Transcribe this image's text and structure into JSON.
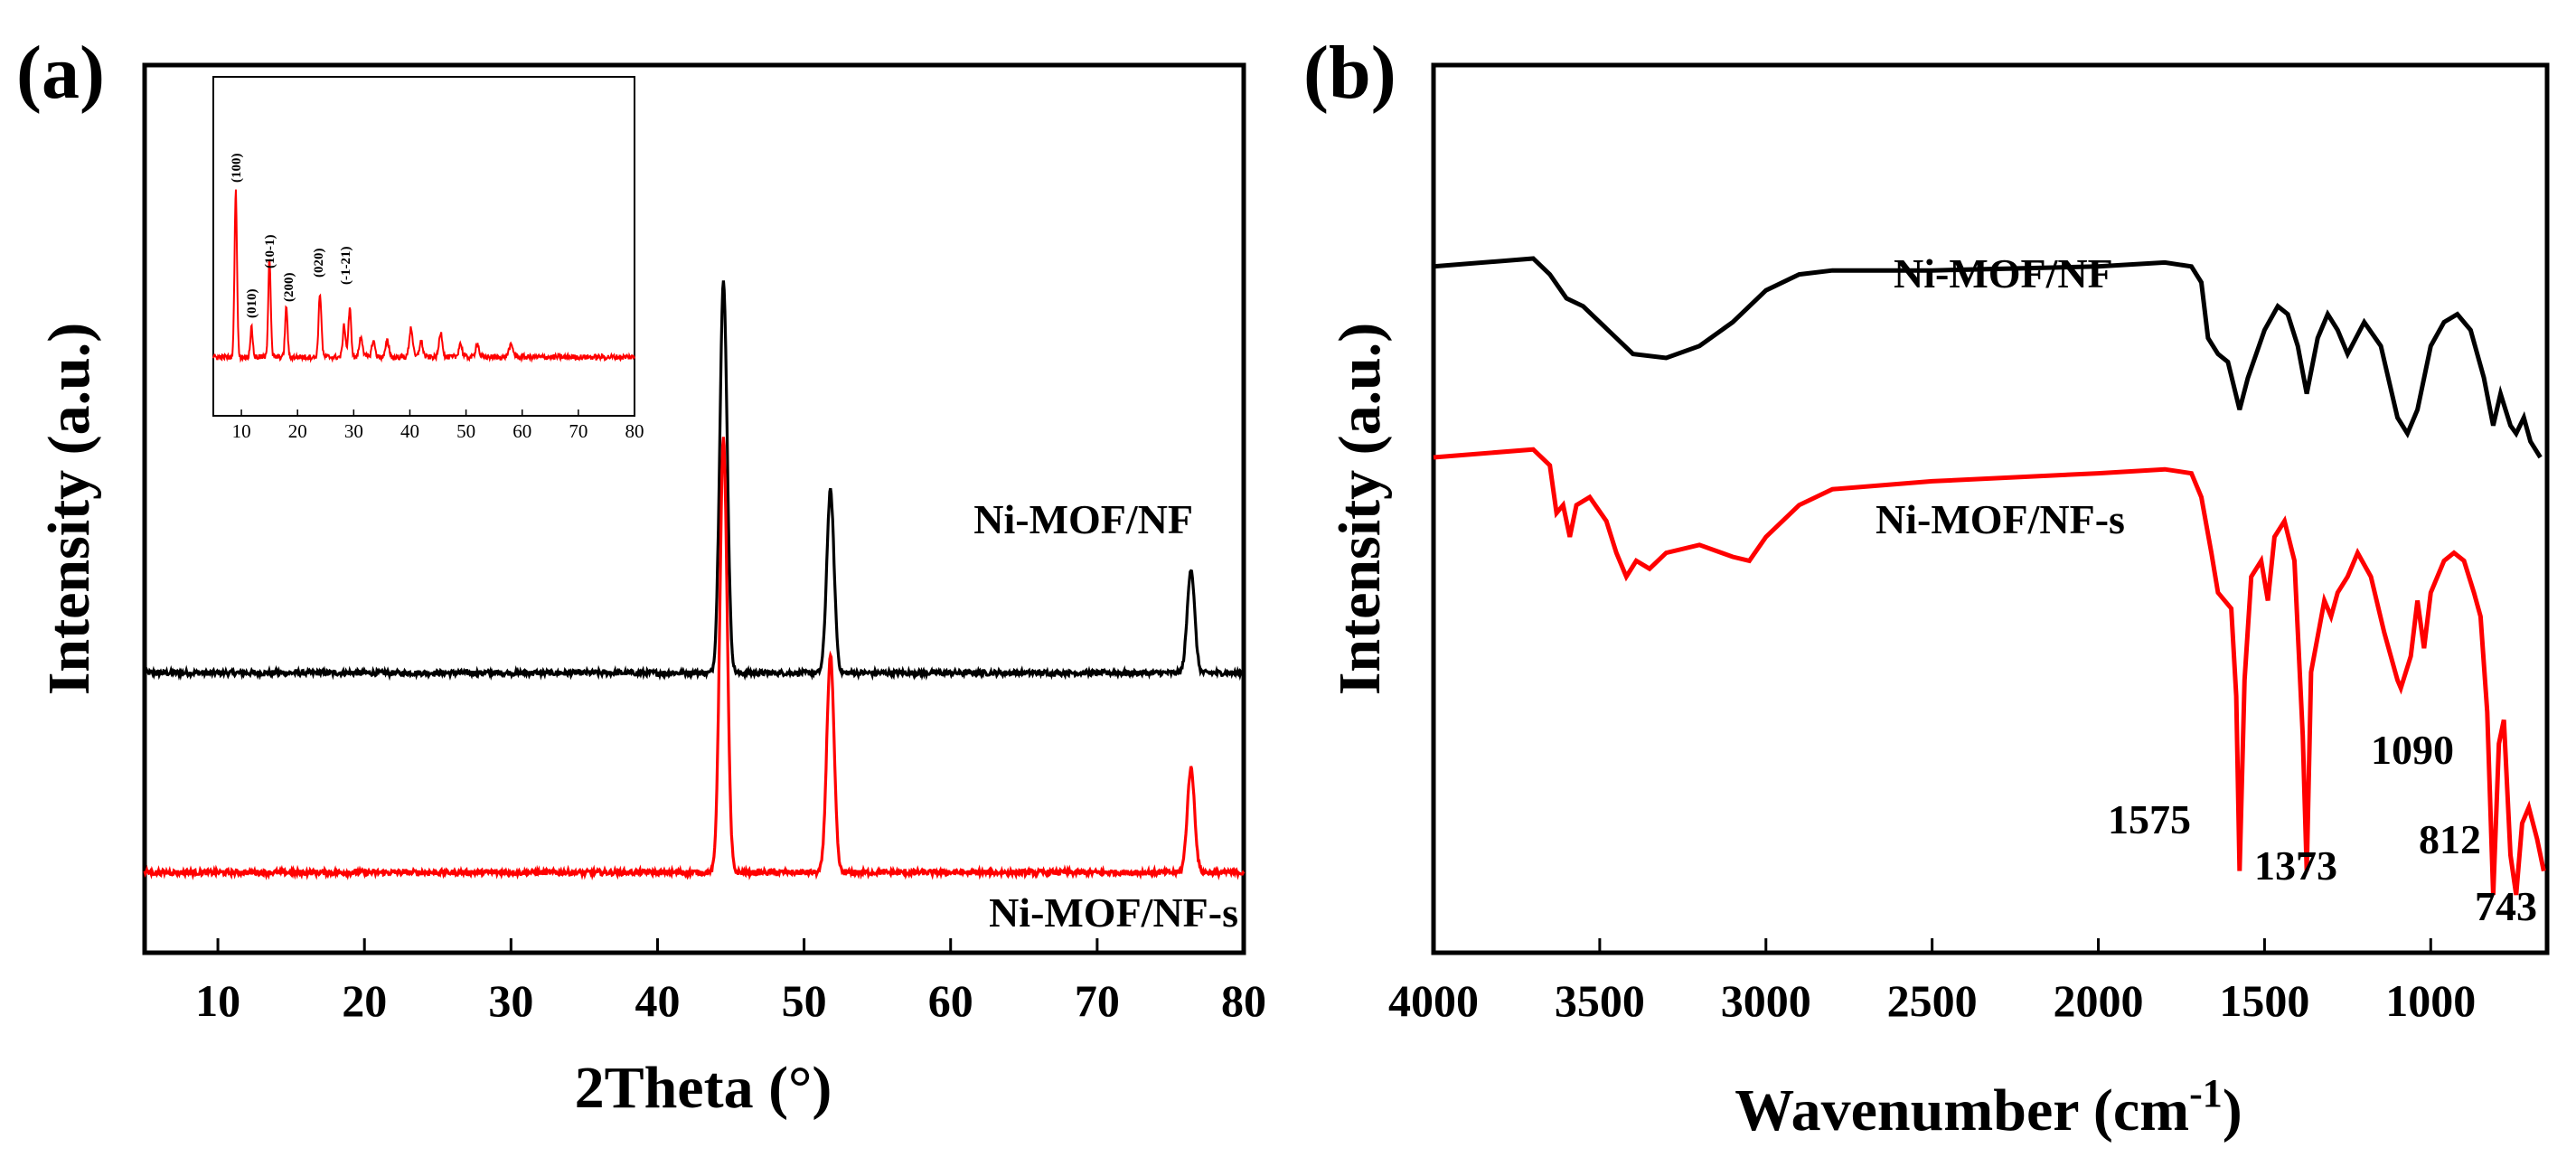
{
  "chart_data": [
    {
      "panel": "(a)",
      "type": "line",
      "title": "",
      "xlabel": "2Theta (°)",
      "ylabel": "Intensity (a.u.)",
      "xlim": [
        5,
        80
      ],
      "xticks": [
        "10",
        "20",
        "30",
        "40",
        "50",
        "60",
        "70",
        "80"
      ],
      "yticks_shown": false,
      "series": [
        {
          "name": "Ni-MOF/NF",
          "color": "#000000",
          "baseline": 0.52,
          "noise": 0.006,
          "peaks": [
            {
              "x": 44.5,
              "height": 0.9,
              "width": 0.25
            },
            {
              "x": 51.8,
              "height": 0.42,
              "width": 0.25
            },
            {
              "x": 76.4,
              "height": 0.24,
              "width": 0.25
            }
          ]
        },
        {
          "name": "Ni-MOF/NF-s",
          "color": "#ff0000",
          "baseline": 0.06,
          "noise": 0.006,
          "peaks": [
            {
              "x": 44.5,
              "height": 1.0,
              "width": 0.25
            },
            {
              "x": 51.8,
              "height": 0.5,
              "width": 0.25
            },
            {
              "x": 76.4,
              "height": 0.24,
              "width": 0.25
            }
          ]
        }
      ],
      "inset": {
        "type": "line",
        "xlim": [
          5,
          80
        ],
        "xticks": [
          "10",
          "20",
          "30",
          "40",
          "50",
          "60",
          "70",
          "80"
        ],
        "series": {
          "color": "#ff0000",
          "baseline": 0.06,
          "noise": 0.012,
          "peaks": [
            {
              "x": 9.0,
              "height": 0.74,
              "width": 0.22
            },
            {
              "x": 11.8,
              "height": 0.13,
              "width": 0.22
            },
            {
              "x": 15.0,
              "height": 0.44,
              "width": 0.22
            },
            {
              "x": 18.0,
              "height": 0.22,
              "width": 0.22
            },
            {
              "x": 24.0,
              "height": 0.28,
              "width": 0.25
            },
            {
              "x": 28.3,
              "height": 0.14,
              "width": 0.25
            },
            {
              "x": 29.3,
              "height": 0.21,
              "width": 0.25
            },
            {
              "x": 31.3,
              "height": 0.09,
              "width": 0.3
            },
            {
              "x": 33.5,
              "height": 0.07,
              "width": 0.3
            },
            {
              "x": 36.0,
              "height": 0.07,
              "width": 0.3
            },
            {
              "x": 40.2,
              "height": 0.13,
              "width": 0.3
            },
            {
              "x": 42.0,
              "height": 0.07,
              "width": 0.3
            },
            {
              "x": 45.5,
              "height": 0.11,
              "width": 0.3
            },
            {
              "x": 49.0,
              "height": 0.06,
              "width": 0.3
            },
            {
              "x": 52.0,
              "height": 0.06,
              "width": 0.3
            },
            {
              "x": 58.0,
              "height": 0.05,
              "width": 0.4
            }
          ]
        },
        "annotations": [
          "(100)",
          "(010)",
          "(10-1)",
          "(200)",
          "(020)",
          "(-1-21)"
        ]
      }
    },
    {
      "panel": "(b)",
      "type": "line",
      "title": "",
      "xlabel": "Wavenumber (cm",
      "xlabel_superscript": "-1",
      "xlabel_suffix": ")",
      "ylabel": "Intensity (a.u.)",
      "xlim": [
        4000,
        650
      ],
      "xticks": [
        "4000",
        "3500",
        "3000",
        "2500",
        "2000",
        "1500",
        "1000"
      ],
      "yticks_shown": false,
      "series": [
        {
          "name": "Ni-MOF/NF",
          "color": "#000000",
          "points": [
            [
              4000,
              0.84
            ],
            [
              3700,
              0.85
            ],
            [
              3650,
              0.83
            ],
            [
              3600,
              0.8
            ],
            [
              3550,
              0.79
            ],
            [
              3450,
              0.75
            ],
            [
              3400,
              0.73
            ],
            [
              3300,
              0.725
            ],
            [
              3200,
              0.74
            ],
            [
              3100,
              0.77
            ],
            [
              3000,
              0.81
            ],
            [
              2900,
              0.83
            ],
            [
              2800,
              0.835
            ],
            [
              2500,
              0.835
            ],
            [
              2000,
              0.84
            ],
            [
              1800,
              0.845
            ],
            [
              1720,
              0.84
            ],
            [
              1690,
              0.82
            ],
            [
              1670,
              0.75
            ],
            [
              1640,
              0.73
            ],
            [
              1610,
              0.72
            ],
            [
              1575,
              0.66
            ],
            [
              1550,
              0.7
            ],
            [
              1500,
              0.76
            ],
            [
              1460,
              0.79
            ],
            [
              1430,
              0.78
            ],
            [
              1400,
              0.74
            ],
            [
              1373,
              0.68
            ],
            [
              1340,
              0.75
            ],
            [
              1310,
              0.78
            ],
            [
              1280,
              0.76
            ],
            [
              1250,
              0.73
            ],
            [
              1200,
              0.77
            ],
            [
              1150,
              0.74
            ],
            [
              1100,
              0.65
            ],
            [
              1070,
              0.63
            ],
            [
              1040,
              0.66
            ],
            [
              1000,
              0.74
            ],
            [
              960,
              0.77
            ],
            [
              920,
              0.78
            ],
            [
              880,
              0.76
            ],
            [
              840,
              0.7
            ],
            [
              812,
              0.64
            ],
            [
              790,
              0.68
            ],
            [
              760,
              0.64
            ],
            [
              743,
              0.63
            ],
            [
              720,
              0.65
            ],
            [
              700,
              0.62
            ],
            [
              670,
              0.6
            ]
          ]
        },
        {
          "name": "Ni-MOF/NF-s",
          "color": "#ff0000",
          "points": [
            [
              4000,
              0.6
            ],
            [
              3700,
              0.61
            ],
            [
              3650,
              0.59
            ],
            [
              3630,
              0.53
            ],
            [
              3610,
              0.54
            ],
            [
              3590,
              0.5
            ],
            [
              3570,
              0.54
            ],
            [
              3530,
              0.55
            ],
            [
              3480,
              0.52
            ],
            [
              3450,
              0.48
            ],
            [
              3420,
              0.45
            ],
            [
              3390,
              0.47
            ],
            [
              3350,
              0.46
            ],
            [
              3300,
              0.48
            ],
            [
              3200,
              0.49
            ],
            [
              3100,
              0.475
            ],
            [
              3050,
              0.47
            ],
            [
              3000,
              0.5
            ],
            [
              2900,
              0.54
            ],
            [
              2800,
              0.56
            ],
            [
              2500,
              0.57
            ],
            [
              2000,
              0.58
            ],
            [
              1800,
              0.585
            ],
            [
              1720,
              0.58
            ],
            [
              1690,
              0.55
            ],
            [
              1660,
              0.48
            ],
            [
              1640,
              0.43
            ],
            [
              1600,
              0.41
            ],
            [
              1585,
              0.3
            ],
            [
              1575,
              0.08
            ],
            [
              1560,
              0.32
            ],
            [
              1540,
              0.45
            ],
            [
              1510,
              0.47
            ],
            [
              1490,
              0.42
            ],
            [
              1470,
              0.5
            ],
            [
              1440,
              0.52
            ],
            [
              1410,
              0.47
            ],
            [
              1385,
              0.25
            ],
            [
              1373,
              0.08
            ],
            [
              1360,
              0.33
            ],
            [
              1320,
              0.42
            ],
            [
              1300,
              0.4
            ],
            [
              1280,
              0.43
            ],
            [
              1250,
              0.45
            ],
            [
              1220,
              0.48
            ],
            [
              1180,
              0.45
            ],
            [
              1140,
              0.38
            ],
            [
              1100,
              0.32
            ],
            [
              1090,
              0.31
            ],
            [
              1060,
              0.35
            ],
            [
              1040,
              0.42
            ],
            [
              1020,
              0.36
            ],
            [
              1000,
              0.43
            ],
            [
              960,
              0.47
            ],
            [
              930,
              0.48
            ],
            [
              900,
              0.47
            ],
            [
              870,
              0.43
            ],
            [
              850,
              0.4
            ],
            [
              830,
              0.28
            ],
            [
              812,
              0.05
            ],
            [
              795,
              0.24
            ],
            [
              780,
              0.27
            ],
            [
              760,
              0.1
            ],
            [
              743,
              0.05
            ],
            [
              725,
              0.14
            ],
            [
              705,
              0.16
            ],
            [
              680,
              0.12
            ],
            [
              660,
              0.08
            ]
          ]
        }
      ],
      "peak_labels": [
        "1575",
        "1373",
        "1090",
        "812",
        "743"
      ]
    }
  ]
}
